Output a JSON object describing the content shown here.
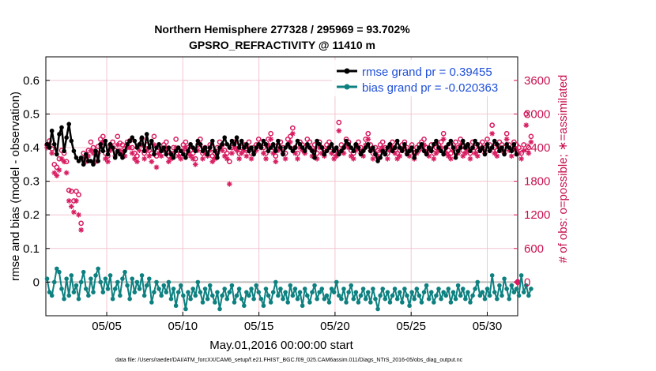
{
  "chart_data": {
    "type": "line",
    "title": "Northern Hemisphere 277328 / 295969 = 93.702%",
    "subtitle": "GPSRO_REFRACTIVITY @ 11410 m",
    "xlabel": "May.01,2016 00:00:00 start",
    "ylabel": "rmse and bias (model - observation)",
    "ylabel_right": "# of obs: o=possible; ∗=assimilated",
    "footnote": "data file: /Users/raeder/DAI/ATM_forcXX/CAM6_setup/f.e21.FHIST_BGC.f09_025.CAM6assim.011/Diags_NTrS_2016-05/obs_diag_output.nc",
    "x_ticks": [
      "05/05",
      "05/10",
      "05/15",
      "05/20",
      "05/25",
      "05/30"
    ],
    "x_tick_days": [
      5,
      10,
      15,
      20,
      25,
      30
    ],
    "xlim_days": [
      1,
      32
    ],
    "ylim": [
      -0.1,
      0.67
    ],
    "y_ticks": [
      "0",
      "0.1",
      "0.2",
      "0.3",
      "0.4",
      "0.5",
      "0.6"
    ],
    "y_tick_values": [
      0,
      0.1,
      0.2,
      0.3,
      0.4,
      0.5,
      0.6
    ],
    "ylim_right": [
      -600,
      4020
    ],
    "y_ticks_right": [
      "0",
      "600",
      "1200",
      "1800",
      "2400",
      "3000",
      "3600"
    ],
    "y_tick_values_right": [
      0,
      600,
      1200,
      1800,
      2400,
      3000,
      3600
    ],
    "grid": true,
    "legend_position": "top-right",
    "colors": {
      "rmse": "#000000",
      "bias": "#0e8080",
      "obs": "#d81b60",
      "zero_line": "#bbbbbb",
      "grid": "#f2c6d0"
    },
    "series": [
      {
        "name": "rmse grand pr = 0.39455",
        "values": [
          0.41,
          0.4,
          0.45,
          0.41,
          0.38,
          0.44,
          0.46,
          0.39,
          0.43,
          0.47,
          0.42,
          0.39,
          0.37,
          0.36,
          0.37,
          0.35,
          0.38,
          0.36,
          0.36,
          0.35,
          0.39,
          0.36,
          0.41,
          0.39,
          0.42,
          0.38,
          0.41,
          0.4,
          0.37,
          0.39,
          0.38,
          0.37,
          0.39,
          0.41,
          0.42,
          0.43,
          0.42,
          0.4,
          0.41,
          0.43,
          0.39,
          0.44,
          0.4,
          0.42,
          0.38,
          0.4,
          0.41,
          0.39,
          0.4,
          0.38,
          0.4,
          0.38,
          0.37,
          0.39,
          0.4,
          0.39,
          0.38,
          0.37,
          0.39,
          0.41,
          0.4,
          0.39,
          0.42,
          0.41,
          0.39,
          0.4,
          0.38,
          0.4,
          0.42,
          0.39,
          0.37,
          0.4,
          0.41,
          0.43,
          0.41,
          0.4,
          0.42,
          0.41,
          0.43,
          0.4,
          0.42,
          0.4,
          0.41,
          0.39,
          0.4,
          0.38,
          0.4,
          0.41,
          0.4,
          0.42,
          0.41,
          0.39,
          0.4,
          0.41,
          0.39,
          0.42,
          0.4,
          0.38,
          0.4,
          0.41,
          0.4,
          0.39,
          0.4,
          0.42,
          0.41,
          0.4,
          0.39,
          0.41,
          0.4,
          0.39,
          0.37,
          0.42,
          0.41,
          0.4,
          0.38,
          0.39,
          0.4,
          0.41,
          0.39,
          0.4,
          0.38,
          0.39,
          0.4,
          0.42,
          0.41,
          0.4,
          0.39,
          0.41,
          0.4,
          0.38,
          0.39,
          0.4,
          0.41,
          0.39,
          0.4,
          0.38,
          0.36,
          0.37,
          0.39,
          0.38,
          0.4,
          0.41,
          0.39,
          0.4,
          0.42,
          0.4,
          0.39,
          0.41,
          0.38,
          0.39,
          0.4,
          0.37,
          0.39,
          0.4,
          0.41,
          0.39,
          0.38,
          0.4,
          0.39,
          0.41,
          0.42,
          0.4,
          0.39,
          0.38,
          0.4,
          0.41,
          0.42,
          0.4,
          0.37,
          0.39,
          0.4,
          0.42,
          0.4,
          0.41,
          0.39,
          0.4,
          0.42,
          0.41,
          0.39,
          0.4,
          0.38,
          0.41,
          0.39,
          0.4,
          0.42,
          0.41,
          0.39,
          0.4,
          0.38,
          0.41,
          0.4,
          0.39,
          0.41,
          0.38
        ]
      },
      {
        "name": "bias grand pr = -0.020363",
        "values": [
          0.01,
          -0.03,
          -0.04,
          0.0,
          0.04,
          0.03,
          -0.02,
          -0.05,
          0.01,
          -0.04,
          0.02,
          -0.03,
          -0.01,
          -0.05,
          0.0,
          0.03,
          -0.02,
          -0.04,
          0.01,
          -0.03,
          0.02,
          0.04,
          0.0,
          -0.03,
          0.01,
          -0.02,
          0.02,
          -0.05,
          -0.02,
          0.0,
          -0.04,
          0.01,
          0.03,
          -0.01,
          -0.05,
          0.01,
          -0.03,
          0.0,
          -0.02,
          0.02,
          -0.04,
          -0.01,
          0.01,
          -0.06,
          -0.03,
          0.0,
          -0.02,
          -0.04,
          -0.01,
          -0.03,
          0.0,
          -0.05,
          -0.02,
          -0.07,
          -0.03,
          -0.01,
          -0.04,
          -0.08,
          -0.03,
          -0.05,
          -0.02,
          -0.04,
          0.0,
          -0.03,
          -0.06,
          -0.02,
          -0.05,
          -0.01,
          -0.04,
          -0.06,
          -0.03,
          -0.08,
          -0.04,
          -0.02,
          -0.05,
          -0.03,
          -0.01,
          -0.06,
          -0.04,
          -0.02,
          -0.05,
          -0.07,
          -0.03,
          -0.04,
          -0.02,
          -0.05,
          -0.01,
          -0.03,
          -0.05,
          -0.07,
          -0.02,
          -0.04,
          -0.06,
          -0.03,
          0.0,
          -0.04,
          -0.02,
          -0.05,
          -0.03,
          -0.06,
          -0.01,
          -0.04,
          -0.02,
          -0.05,
          -0.03,
          -0.07,
          -0.02,
          -0.04,
          -0.06,
          -0.03,
          -0.01,
          -0.05,
          -0.03,
          -0.02,
          -0.05,
          -0.04,
          -0.06,
          -0.02,
          -0.03,
          0.0,
          -0.04,
          -0.05,
          -0.02,
          -0.06,
          -0.03,
          -0.01,
          -0.05,
          -0.03,
          -0.06,
          -0.04,
          -0.02,
          -0.05,
          -0.03,
          -0.06,
          -0.02,
          -0.05,
          -0.08,
          -0.04,
          -0.02,
          -0.05,
          -0.03,
          -0.06,
          -0.04,
          -0.02,
          -0.05,
          -0.03,
          -0.06,
          -0.02,
          -0.04,
          -0.07,
          -0.03,
          -0.05,
          -0.02,
          -0.04,
          -0.06,
          -0.03,
          -0.01,
          -0.05,
          -0.03,
          -0.06,
          -0.04,
          -0.02,
          -0.05,
          -0.03,
          -0.04,
          -0.02,
          -0.06,
          -0.03,
          -0.05,
          -0.01,
          -0.04,
          -0.02,
          -0.05,
          -0.03,
          -0.06,
          -0.04,
          -0.02,
          0.0,
          -0.04,
          -0.03,
          -0.05,
          -0.02,
          -0.04,
          0.02,
          -0.03,
          -0.05,
          -0.01,
          -0.04,
          0.01,
          -0.02,
          -0.05,
          -0.01,
          -0.03,
          -0.02,
          -0.04,
          0.02,
          -0.03,
          -0.01,
          -0.04,
          -0.02
        ]
      },
      {
        "name": "possible",
        "values": [
          2450,
          2520,
          2380,
          2100,
          2050,
          2200,
          2350,
          2300,
          2150,
          1640,
          1620,
          1450,
          1620,
          1560,
          1050,
          2300,
          2250,
          2350,
          2500,
          2400,
          2280,
          2420,
          2550,
          2600,
          2300,
          2250,
          2450,
          2500,
          2350,
          2600,
          2480,
          2450,
          2380,
          2500,
          2520,
          2400,
          2300,
          2250,
          2450,
          2560,
          2300,
          2450,
          2350,
          2300,
          2600,
          2250,
          2400,
          2380,
          2450,
          2500,
          2250,
          2300,
          2400,
          2550,
          2350,
          2300,
          2450,
          2500,
          2400,
          2350,
          2300,
          2200,
          2450,
          2550,
          2300,
          2400,
          2350,
          2450,
          2250,
          2300,
          2400,
          2500,
          2450,
          2350,
          2300,
          2150,
          2400,
          2500,
          2450,
          2300,
          2400,
          2450,
          2350,
          2500,
          2300,
          2400,
          2450,
          2550,
          2500,
          2400,
          2300,
          2550,
          2650,
          2400,
          2250,
          2450,
          2500,
          2400,
          2300,
          2550,
          2600,
          2750,
          2400,
          2300,
          2500,
          2450,
          2400,
          2550,
          2500,
          2350,
          2450,
          2300,
          2500,
          2400,
          2350,
          2450,
          2500,
          2400,
          2300,
          2350,
          2850,
          2450,
          2400,
          2550,
          2500,
          2350,
          2300,
          2450,
          2500,
          2400,
          2350,
          2550,
          2650,
          2450,
          2300,
          2400,
          2350,
          2450,
          2500,
          2400,
          2300,
          2450,
          2500,
          2400,
          2300,
          2350,
          2450,
          2500,
          2400,
          2350,
          2450,
          2300,
          2400,
          2450,
          2500,
          2550,
          2400,
          2350,
          2450,
          2300,
          2400,
          2450,
          2500,
          2650,
          2400,
          2350,
          2300,
          2450,
          2500,
          2400,
          2550,
          2350,
          2400,
          2450,
          2300,
          2500,
          2400,
          2350,
          2450,
          2500,
          2400,
          2550,
          2450,
          2800,
          2400,
          2350,
          2500,
          2450,
          2400,
          2650,
          2450,
          2350,
          2500,
          2450,
          2400,
          2300,
          2450,
          3000,
          2400,
          2600
        ]
      },
      {
        "name": "assimilated",
        "values": [
          2400,
          2450,
          2300,
          1950,
          1900,
          2000,
          2200,
          2150,
          1950,
          1450,
          1350,
          1250,
          1450,
          1200,
          930,
          2200,
          2150,
          2250,
          2350,
          2300,
          2150,
          2300,
          2450,
          2500,
          2200,
          2150,
          2350,
          2400,
          2250,
          2450,
          2350,
          2300,
          2250,
          2400,
          2400,
          2300,
          2200,
          2150,
          2350,
          2450,
          2200,
          2350,
          2250,
          2150,
          2450,
          2050,
          2300,
          2250,
          2350,
          2400,
          2150,
          2200,
          2300,
          2400,
          2250,
          2200,
          2350,
          2400,
          2300,
          2250,
          2200,
          2100,
          2350,
          2450,
          2200,
          2300,
          2250,
          2350,
          2150,
          2200,
          2300,
          2400,
          2350,
          2250,
          2200,
          1750,
          2300,
          2400,
          2350,
          2200,
          2300,
          2350,
          2250,
          2400,
          2200,
          2300,
          2350,
          2450,
          2400,
          2300,
          2200,
          2450,
          2550,
          2300,
          2150,
          2350,
          2400,
          2300,
          2200,
          2450,
          2500,
          2650,
          2300,
          2200,
          2400,
          2350,
          2300,
          2450,
          2400,
          2250,
          2350,
          2200,
          2400,
          2300,
          2250,
          2350,
          2400,
          2300,
          2200,
          2250,
          2700,
          2350,
          2300,
          2450,
          2400,
          2250,
          2200,
          2350,
          2400,
          2300,
          2250,
          2450,
          2550,
          2350,
          2200,
          2300,
          2250,
          2350,
          2400,
          2300,
          2200,
          2350,
          2400,
          2300,
          2200,
          2250,
          2350,
          2400,
          2300,
          2250,
          2350,
          2200,
          2300,
          2350,
          2400,
          2450,
          2300,
          2250,
          2350,
          2200,
          2300,
          2350,
          2400,
          2550,
          2300,
          2250,
          2200,
          2350,
          2400,
          2300,
          2450,
          2250,
          2300,
          2350,
          2200,
          2400,
          2300,
          2250,
          2350,
          2400,
          2300,
          2450,
          2350,
          2650,
          2300,
          2250,
          2400,
          2350,
          2300,
          2550,
          2350,
          2250,
          2400,
          2350,
          2300,
          2200,
          2350,
          2800,
          2300,
          2500
        ]
      }
    ]
  }
}
